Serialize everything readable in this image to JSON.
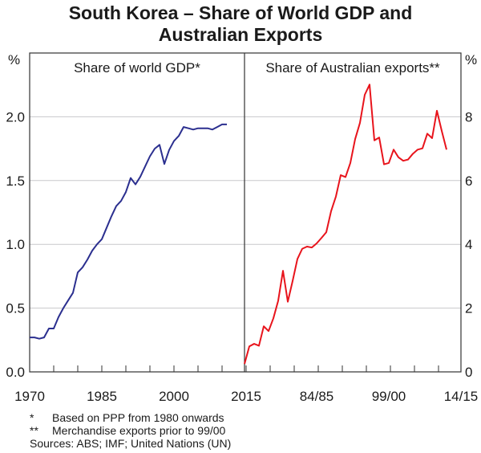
{
  "title_line1": "South Korea – Share of World GDP and",
  "title_line2": "Australian Exports",
  "footnotes": [
    {
      "mark": "*",
      "text": "Based on PPP from 1980 onwards"
    },
    {
      "mark": "**",
      "text": "Merchandise exports prior to 99/00"
    }
  ],
  "sources": "Sources: ABS; IMF; United Nations (UN)",
  "chart_data": [
    {
      "type": "line",
      "title": "Share of world GDP*",
      "ylabel": "%",
      "ylim": [
        0,
        2.5
      ],
      "yticks": [
        "0.0",
        "0.5",
        "1.0",
        "1.5",
        "2.0"
      ],
      "xlim": [
        1970,
        2015
      ],
      "xtick_labels": [
        "1970",
        "1985",
        "2000",
        "2015"
      ],
      "grid": true,
      "color": "#2b2f8f",
      "x": [
        1970,
        1971,
        1972,
        1973,
        1974,
        1975,
        1976,
        1977,
        1978,
        1979,
        1980,
        1981,
        1982,
        1983,
        1984,
        1985,
        1986,
        1987,
        1988,
        1989,
        1990,
        1991,
        1992,
        1993,
        1994,
        1995,
        1996,
        1997,
        1998,
        1999,
        2000,
        2001,
        2002,
        2003,
        2004,
        2005,
        2006,
        2007,
        2008,
        2009,
        2010,
        2011
      ],
      "values": [
        0.27,
        0.27,
        0.26,
        0.27,
        0.34,
        0.34,
        0.43,
        0.5,
        0.56,
        0.62,
        0.78,
        0.82,
        0.88,
        0.95,
        1.0,
        1.04,
        1.13,
        1.22,
        1.3,
        1.34,
        1.41,
        1.52,
        1.47,
        1.53,
        1.61,
        1.69,
        1.75,
        1.78,
        1.63,
        1.74,
        1.81,
        1.85,
        1.92,
        1.91,
        1.9,
        1.91,
        1.91,
        1.91,
        1.9,
        1.92,
        1.94,
        1.94
      ]
    },
    {
      "type": "line",
      "title": "Share of Australian exports**",
      "ylabel": "%",
      "ylim": [
        0,
        10
      ],
      "yticks": [
        "0",
        "2",
        "4",
        "6",
        "8"
      ],
      "xlim": [
        "69/70",
        "14/15"
      ],
      "xtick_labels": [
        "84/85",
        "99/00",
        "14/15"
      ],
      "grid": true,
      "color": "#e8141c",
      "x": [
        "69/70",
        "70/71",
        "71/72",
        "72/73",
        "73/74",
        "74/75",
        "75/76",
        "76/77",
        "77/78",
        "78/79",
        "79/80",
        "80/81",
        "81/82",
        "82/83",
        "83/84",
        "84/85",
        "85/86",
        "86/87",
        "87/88",
        "88/89",
        "89/90",
        "90/91",
        "91/92",
        "92/93",
        "93/94",
        "94/95",
        "95/96",
        "96/97",
        "97/98",
        "98/99",
        "99/00",
        "00/01",
        "01/02",
        "02/03",
        "03/04",
        "04/05",
        "05/06",
        "06/07",
        "07/08",
        "08/09",
        "09/10",
        "10/11",
        "11/12"
      ],
      "values": [
        0.25,
        0.8,
        0.88,
        0.82,
        1.43,
        1.28,
        1.68,
        2.23,
        3.17,
        2.2,
        2.85,
        3.54,
        3.86,
        3.93,
        3.9,
        4.03,
        4.2,
        4.38,
        5.04,
        5.5,
        6.17,
        6.11,
        6.55,
        7.3,
        7.81,
        8.69,
        9.01,
        7.26,
        7.35,
        6.51,
        6.55,
        6.97,
        6.73,
        6.62,
        6.66,
        6.84,
        6.97,
        7.01,
        7.47,
        7.33,
        8.19,
        7.56,
        6.97
      ]
    }
  ]
}
